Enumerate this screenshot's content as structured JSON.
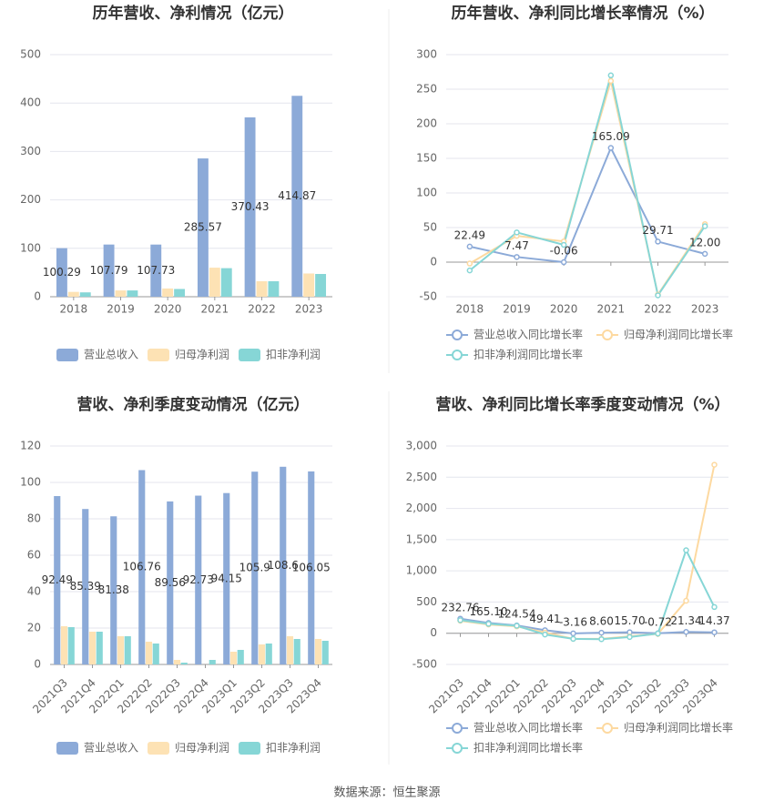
{
  "chart_data": [
    {
      "type": "bar",
      "title": "历年营收、净利情况（亿元）",
      "categories": [
        "2018",
        "2019",
        "2020",
        "2021",
        "2022",
        "2023"
      ],
      "series": [
        {
          "name": "营业总收入",
          "color": "#8caad8",
          "values": [
            100.29,
            107.79,
            107.73,
            285.57,
            370.43,
            414.87
          ],
          "value_labels": [
            "100.29",
            "107.79",
            "107.73",
            "285.57",
            "370.43",
            "414.87"
          ]
        },
        {
          "name": "归母净利润",
          "color": "#fde2b4",
          "values": [
            10,
            13,
            17,
            60,
            32,
            48
          ]
        },
        {
          "name": "扣非净利润",
          "color": "#86d6d6",
          "values": [
            9,
            13,
            16,
            59,
            32,
            47
          ]
        }
      ],
      "ylim": [
        0,
        500
      ],
      "yticks": [
        0,
        100,
        200,
        300,
        400,
        500
      ],
      "grid": true,
      "legend": "bottom"
    },
    {
      "type": "line",
      "title": "历年营收、净利同比增长率情况（%）",
      "categories": [
        "2018",
        "2019",
        "2020",
        "2021",
        "2022",
        "2023"
      ],
      "series": [
        {
          "name": "营业总收入同比增长率",
          "color": "#8caad8",
          "values": [
            22.49,
            7.47,
            -0.06,
            165.09,
            29.71,
            12.0
          ],
          "value_labels": [
            "22.49",
            "7.47",
            "-0.06",
            "165.09",
            "29.71",
            "12.00"
          ]
        },
        {
          "name": "归母净利润同比增长率",
          "color": "#fdd9a0",
          "values": [
            -2,
            38,
            30,
            262,
            -47,
            55
          ]
        },
        {
          "name": "扣非净利润同比增长率",
          "color": "#86d6d6",
          "values": [
            -12,
            43,
            25,
            270,
            -48,
            52
          ]
        }
      ],
      "ylim": [
        -50,
        300
      ],
      "yticks": [
        -50,
        0,
        50,
        100,
        150,
        200,
        250,
        300
      ],
      "grid": true,
      "legend": "bottom"
    },
    {
      "type": "bar",
      "title": "营收、净利季度变动情况（亿元）",
      "categories": [
        "2021Q3",
        "2021Q4",
        "2022Q1",
        "2022Q2",
        "2022Q3",
        "2022Q4",
        "2023Q1",
        "2023Q2",
        "2023Q3",
        "2023Q4"
      ],
      "series": [
        {
          "name": "营业总收入",
          "color": "#8caad8",
          "values": [
            92.49,
            85.39,
            81.38,
            106.76,
            89.56,
            92.73,
            94.15,
            105.9,
            108.6,
            106.05
          ],
          "value_labels": [
            "92.49",
            "85.39",
            "81.38",
            "106.76",
            "89.56",
            "92.73",
            "94.15",
            "105.9",
            "108.6",
            "106.05"
          ]
        },
        {
          "name": "归母净利润",
          "color": "#fde2b4",
          "values": [
            21,
            18,
            15.5,
            12.5,
            2.5,
            0,
            7,
            11,
            15.5,
            14
          ]
        },
        {
          "name": "扣非净利润",
          "color": "#86d6d6",
          "values": [
            20.5,
            18,
            15.5,
            11.5,
            1,
            2.5,
            8,
            11.5,
            14,
            13
          ]
        }
      ],
      "ylim": [
        0,
        120
      ],
      "yticks": [
        0,
        20,
        40,
        60,
        80,
        100,
        120
      ],
      "grid": true,
      "legend": "bottom"
    },
    {
      "type": "line",
      "title": "营收、净利同比增长率季度变动情况（%）",
      "categories": [
        "2021Q3",
        "2021Q4",
        "2022Q1",
        "2022Q2",
        "2022Q3",
        "2022Q4",
        "2023Q1",
        "2023Q2",
        "2023Q3",
        "2023Q4"
      ],
      "series": [
        {
          "name": "营业总收入同比增长率",
          "color": "#8caad8",
          "values": [
            232.76,
            165.1,
            124.54,
            49.41,
            -3.16,
            8.6,
            15.7,
            -0.72,
            21.34,
            14.37
          ],
          "value_labels": [
            "232.76",
            "165.10",
            "124.54",
            "49.41",
            "-3.16",
            "8.60",
            "15.70",
            "-0.72",
            "21.34",
            "14.37"
          ]
        },
        {
          "name": "归母净利润同比增长率",
          "color": "#fdd9a0",
          "values": [
            200,
            140,
            110,
            10,
            -90,
            -90,
            -50,
            -10,
            520,
            2700
          ]
        },
        {
          "name": "扣非净利润同比增长率",
          "color": "#86d6d6",
          "values": [
            210,
            150,
            120,
            -20,
            -90,
            -95,
            -60,
            -5,
            1330,
            420
          ]
        }
      ],
      "ylim": [
        -500,
        3000
      ],
      "yticks": [
        -500,
        0,
        500,
        {
          "value": 1000,
          "label": "1,000"
        },
        {
          "value": 1500,
          "label": "1,500"
        },
        {
          "value": 2000,
          "label": "2,000"
        },
        {
          "value": 2500,
          "label": "2,500"
        },
        {
          "value": 3000,
          "label": "3,000"
        }
      ],
      "grid": true,
      "legend": "bottom"
    }
  ],
  "footer": "数据来源：恒生聚源"
}
